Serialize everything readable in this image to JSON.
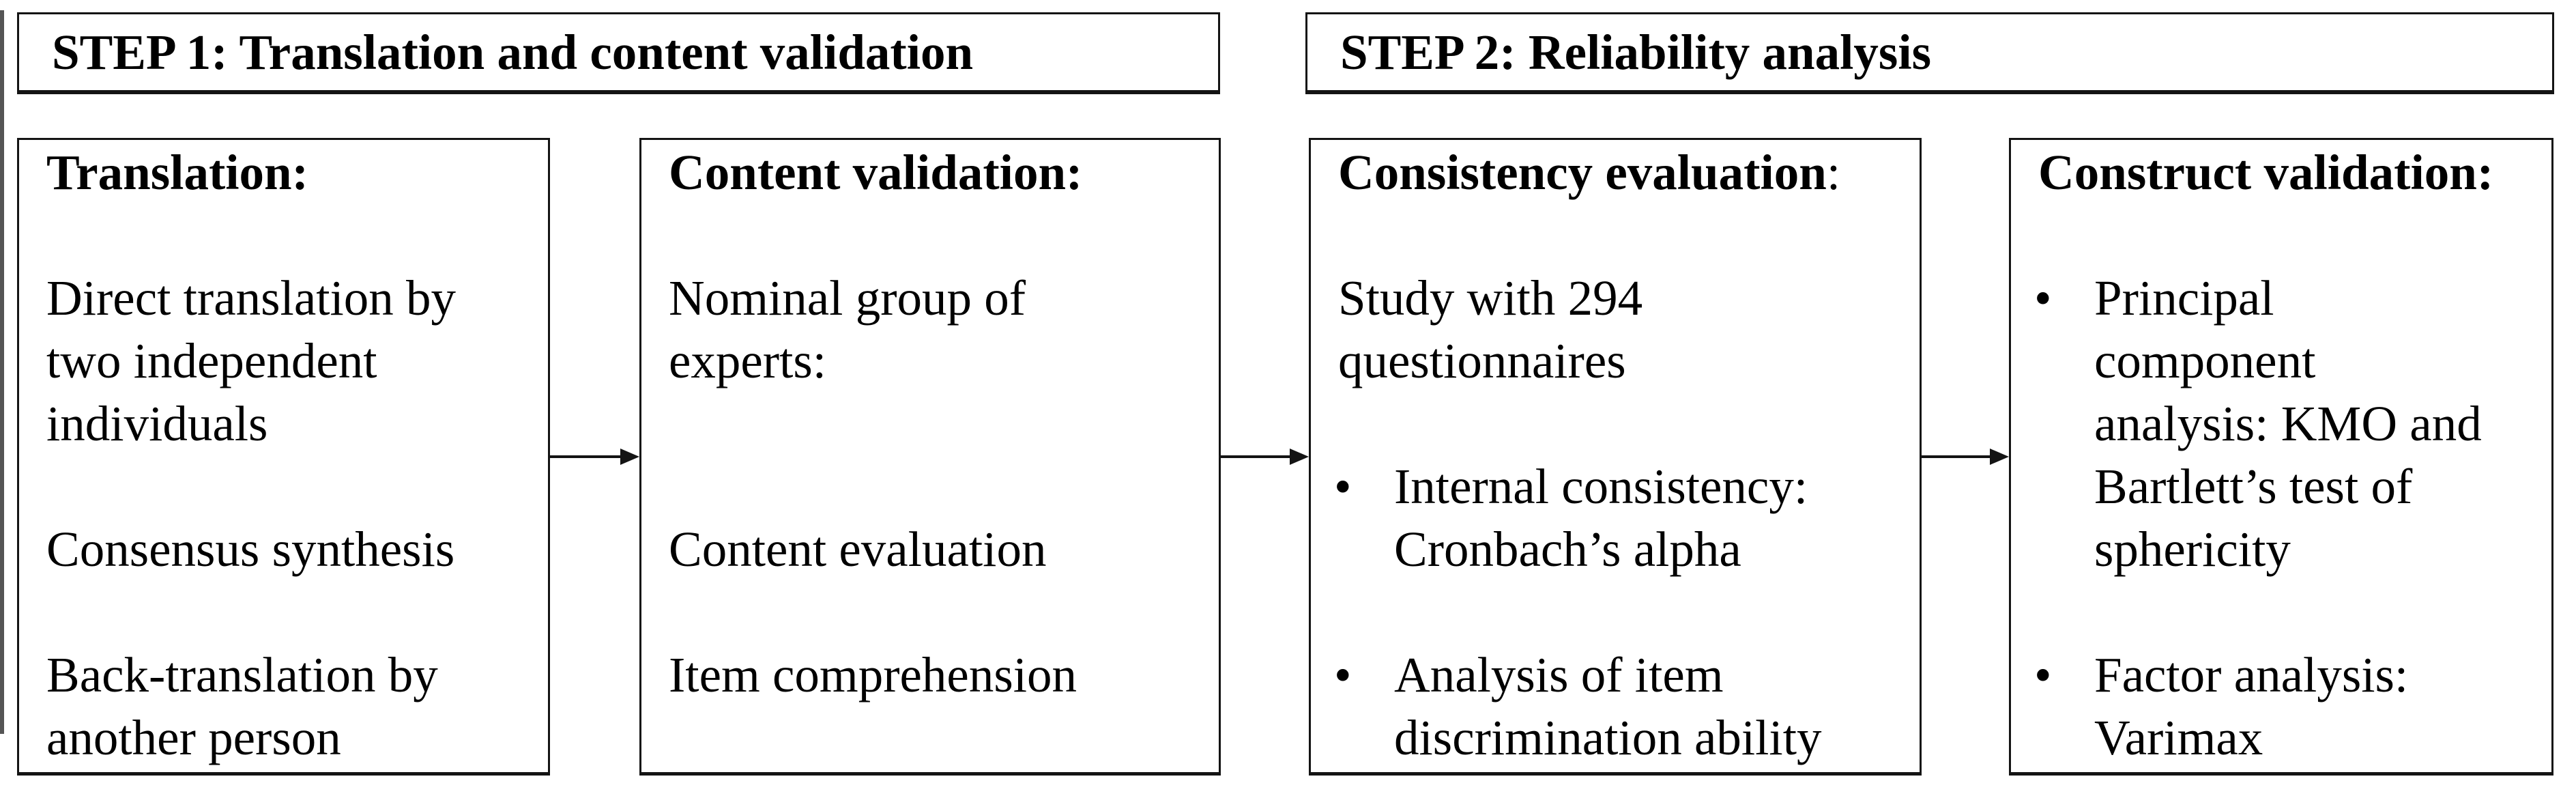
{
  "colors": {
    "background": "#ffffff",
    "border": "#141414",
    "text": "#000000"
  },
  "bullet_char": "•",
  "headers": [
    {
      "label": "STEP 1: Translation and content validation"
    },
    {
      "label": "STEP 2: Reliability analysis"
    }
  ],
  "boxes": [
    {
      "heading_bold": "Translation:",
      "heading_rest": "",
      "items": [
        {
          "bullet": false,
          "text": "Direct translation by\ntwo independent\nindividuals"
        },
        {
          "bullet": false,
          "text": "Consensus synthesis"
        },
        {
          "bullet": false,
          "text": "Back-translation by\nanother person"
        }
      ]
    },
    {
      "heading_bold": "Content validation:",
      "heading_rest": "",
      "items": [
        {
          "bullet": false,
          "text": "Nominal group of\nexperts:"
        },
        {
          "bullet": false,
          "text": "Content evaluation"
        },
        {
          "bullet": false,
          "text": "Item comprehension"
        }
      ]
    },
    {
      "heading_bold": "Consistency evaluation",
      "heading_rest": ":",
      "items": [
        {
          "bullet": false,
          "text": "Study with 294\nquestionnaires"
        },
        {
          "bullet": true,
          "text": "Internal consistency:\nCronbach’s alpha"
        },
        {
          "bullet": true,
          "text": "Analysis of item\ndiscrimination ability"
        }
      ]
    },
    {
      "heading_bold": "Construct validation:",
      "heading_rest": "",
      "items": [
        {
          "bullet": true,
          "text": "Principal\ncomponent\nanalysis: KMO and\nBartlett’s test of\nsphericity"
        },
        {
          "bullet": true,
          "text": "Factor analysis:\nVarimax"
        }
      ]
    }
  ]
}
